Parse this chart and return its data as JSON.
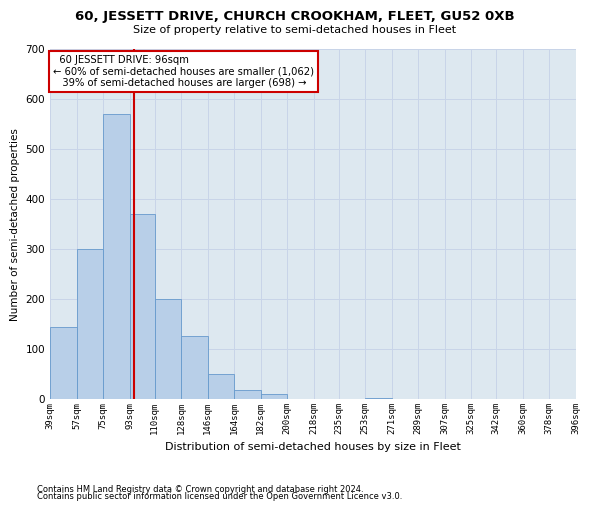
{
  "title": "60, JESSETT DRIVE, CHURCH CROOKHAM, FLEET, GU52 0XB",
  "subtitle": "Size of property relative to semi-detached houses in Fleet",
  "xlabel": "Distribution of semi-detached houses by size in Fleet",
  "ylabel": "Number of semi-detached properties",
  "footnote1": "Contains HM Land Registry data © Crown copyright and database right 2024.",
  "footnote2": "Contains public sector information licensed under the Open Government Licence v3.0.",
  "property_size": 96,
  "property_label": "60 JESSETT DRIVE: 96sqm",
  "pct_smaller": 60,
  "count_smaller": 1062,
  "pct_larger": 39,
  "count_larger": 698,
  "bar_color": "#b8cfe8",
  "bar_edge_color": "#6699cc",
  "red_line_color": "#cc0000",
  "annotation_box_color": "#cc0000",
  "grid_color": "#c8d4e8",
  "background_color": "#dde8f0",
  "bins": [
    39,
    57,
    75,
    93,
    110,
    128,
    146,
    164,
    182,
    200,
    218,
    235,
    253,
    271,
    289,
    307,
    325,
    342,
    360,
    378,
    396
  ],
  "counts": [
    143,
    300,
    570,
    370,
    200,
    125,
    50,
    18,
    10,
    0,
    0,
    0,
    2,
    0,
    0,
    0,
    0,
    0,
    0,
    0
  ],
  "ylim": [
    0,
    700
  ],
  "yticks": [
    0,
    100,
    200,
    300,
    400,
    500,
    600,
    700
  ],
  "tick_labels": [
    "39sqm",
    "57sqm",
    "75sqm",
    "93sqm",
    "110sqm",
    "128sqm",
    "146sqm",
    "164sqm",
    "182sqm",
    "200sqm",
    "218sqm",
    "235sqm",
    "253sqm",
    "271sqm",
    "289sqm",
    "307sqm",
    "325sqm",
    "342sqm",
    "360sqm",
    "378sqm",
    "396sqm"
  ]
}
